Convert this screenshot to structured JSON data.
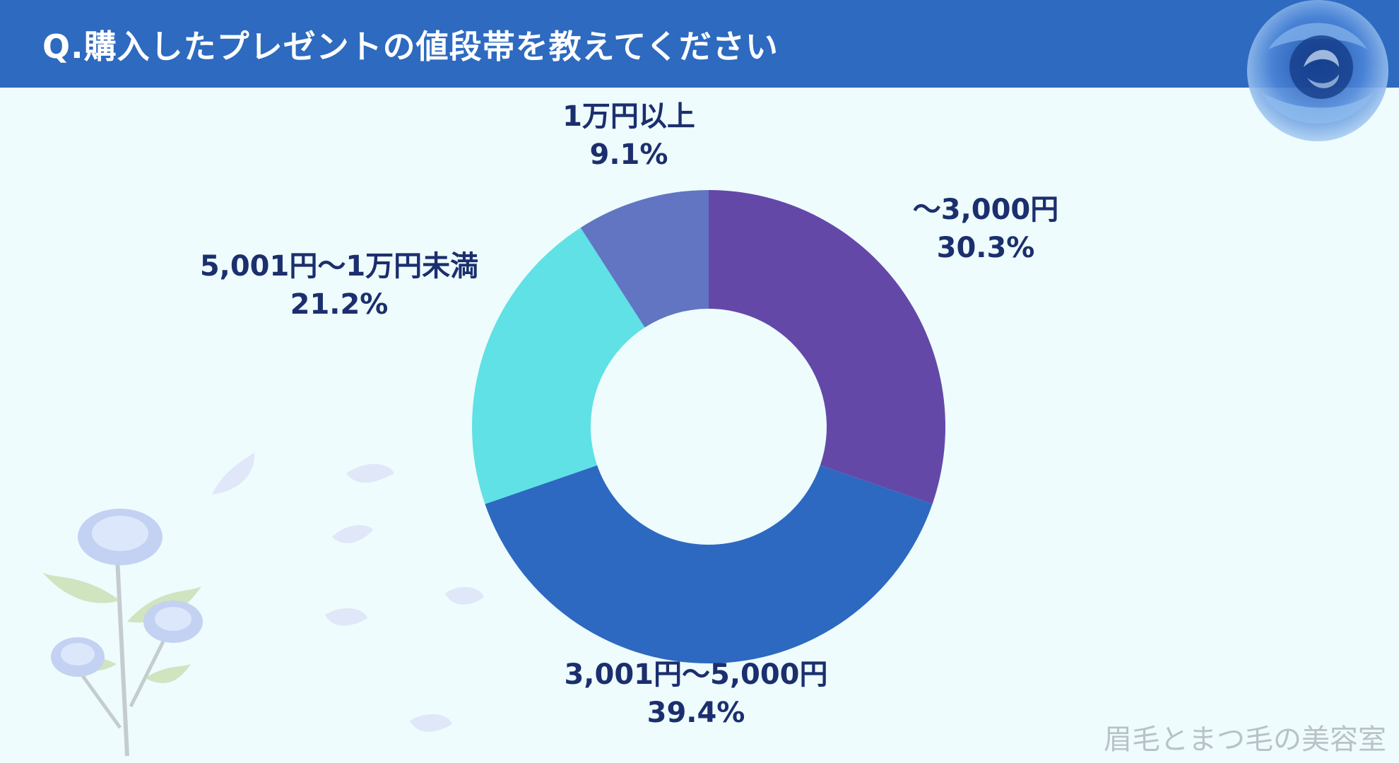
{
  "header": {
    "title": "Q.購入したプレゼントの値段帯を教えてください"
  },
  "watermark": "眉毛とまつ毛の美容室",
  "colors": {
    "header_bg": "#2d6ac0",
    "page_bg": "#eefcfd",
    "label": "#1b2f6e"
  },
  "decorations": [
    "blue-rose-icon",
    "rose-bouquet-icon",
    "petal-icon"
  ],
  "chart_data": {
    "type": "pie",
    "donut": true,
    "title": "",
    "slices": [
      {
        "label": "～3,000円",
        "value": 30.3,
        "percent_label": "30.3%",
        "color": "#6448a8"
      },
      {
        "label": "3,001円～5,000円",
        "value": 39.4,
        "percent_label": "39.4%",
        "color": "#2d69c0"
      },
      {
        "label": "5,001円～1万円未満",
        "value": 21.2,
        "percent_label": "21.2%",
        "color": "#5fe1e5"
      },
      {
        "label": "1万円以上",
        "value": 9.1,
        "percent_label": "9.1%",
        "color": "#6175c2"
      }
    ]
  }
}
